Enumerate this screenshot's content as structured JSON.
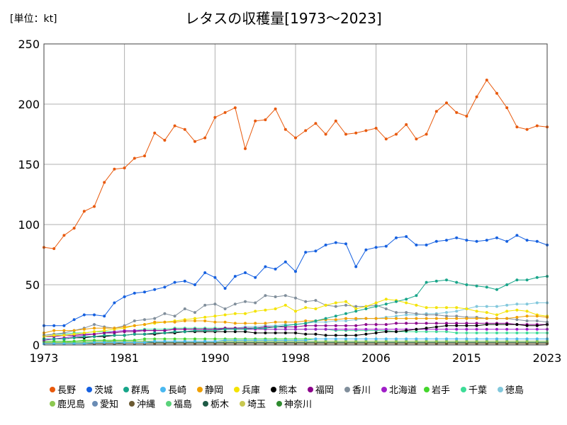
{
  "header": {
    "unit_label": "[単位：kt]"
  },
  "chart_data": {
    "type": "line",
    "title": "レタスの収穫量[1973〜2023]",
    "xlabel": "",
    "ylabel": "",
    "xlim": [
      1973,
      2023
    ],
    "ylim": [
      0,
      250
    ],
    "x_ticks": [
      1973,
      1981,
      1990,
      1998,
      2006,
      2015,
      2023
    ],
    "y_ticks": [
      0,
      50,
      100,
      150,
      200,
      250
    ],
    "grid": true,
    "legend_position": "bottom",
    "x": [
      1973,
      1974,
      1975,
      1976,
      1977,
      1978,
      1979,
      1980,
      1981,
      1982,
      1983,
      1984,
      1985,
      1986,
      1987,
      1988,
      1989,
      1990,
      1991,
      1992,
      1993,
      1994,
      1995,
      1996,
      1997,
      1998,
      1999,
      2000,
      2001,
      2002,
      2003,
      2004,
      2005,
      2006,
      2007,
      2008,
      2009,
      2010,
      2011,
      2012,
      2013,
      2014,
      2015,
      2016,
      2017,
      2018,
      2019,
      2020,
      2021,
      2022,
      2023
    ],
    "series": [
      {
        "name": "長野",
        "color": "#E8590C",
        "values": [
          81,
          80,
          91,
          97,
          111,
          115,
          135,
          146,
          147,
          155,
          157,
          176,
          170,
          182,
          179,
          169,
          172,
          189,
          193,
          197,
          163,
          186,
          187,
          196,
          179,
          172,
          178,
          184,
          175,
          186,
          175,
          176,
          178,
          180,
          171,
          175,
          183,
          171,
          175,
          194,
          201,
          193,
          190,
          206,
          220,
          209,
          197,
          181,
          179,
          182,
          181
        ]
      },
      {
        "name": "茨城",
        "color": "#1560E0",
        "values": [
          16,
          16,
          16,
          21,
          25,
          25,
          24,
          35,
          40,
          43,
          44,
          46,
          48,
          52,
          53,
          50,
          60,
          56,
          47,
          57,
          60,
          56,
          65,
          63,
          69,
          61,
          77,
          78,
          83,
          85,
          84,
          65,
          79,
          81,
          82,
          89,
          90,
          83,
          83,
          86,
          87,
          89,
          87,
          86,
          87,
          89,
          86,
          91,
          87,
          86,
          83
        ]
      },
      {
        "name": "群馬",
        "color": "#17A589",
        "values": [
          5,
          5,
          5,
          6,
          7,
          7,
          8,
          8,
          8,
          9,
          9,
          10,
          10,
          11,
          11,
          12,
          12,
          12,
          13,
          13,
          13,
          14,
          14,
          15,
          16,
          17,
          18,
          20,
          22,
          24,
          26,
          28,
          30,
          32,
          34,
          36,
          38,
          41,
          52,
          53,
          54,
          52,
          50,
          49,
          48,
          46,
          50,
          54,
          54,
          56,
          57
        ]
      },
      {
        "name": "長崎",
        "color": "#4AB8F0",
        "values": [
          1,
          1,
          1,
          1,
          1,
          2,
          2,
          2,
          2,
          2,
          2,
          3,
          3,
          3,
          3,
          3,
          3,
          3,
          4,
          4,
          4,
          4,
          4,
          4,
          4,
          4,
          4,
          5,
          5,
          5,
          5,
          5,
          5,
          5,
          5,
          5,
          5,
          5,
          5,
          5,
          5,
          5,
          5,
          5,
          5,
          5,
          5,
          5,
          5,
          5,
          5
        ]
      },
      {
        "name": "静岡",
        "color": "#F0A000",
        "values": [
          10,
          12,
          12,
          12,
          13,
          14,
          14,
          14,
          15,
          16,
          17,
          19,
          19,
          19,
          20,
          20,
          20,
          19,
          19,
          18,
          18,
          18,
          18,
          19,
          19,
          19,
          20,
          20,
          21,
          21,
          22,
          22,
          22,
          22,
          22,
          22,
          22,
          22,
          22,
          22,
          22,
          22,
          22,
          22,
          22,
          22,
          22,
          23,
          24,
          24,
          23
        ]
      },
      {
        "name": "兵庫",
        "color": "#F4E300",
        "values": [
          7,
          8,
          8,
          9,
          10,
          11,
          12,
          13,
          14,
          16,
          17,
          18,
          19,
          20,
          21,
          22,
          23,
          24,
          25,
          26,
          26,
          28,
          29,
          30,
          33,
          28,
          31,
          30,
          33,
          35,
          36,
          30,
          32,
          35,
          38,
          37,
          35,
          33,
          31,
          31,
          31,
          31,
          30,
          28,
          27,
          25,
          28,
          29,
          28,
          25,
          24
        ]
      },
      {
        "name": "熊本",
        "color": "#000000",
        "values": [
          5,
          5,
          5,
          6,
          6,
          7,
          7,
          8,
          8,
          9,
          9,
          9,
          10,
          10,
          11,
          11,
          11,
          11,
          11,
          11,
          11,
          10,
          10,
          10,
          10,
          10,
          9,
          9,
          8,
          8,
          8,
          8,
          9,
          10,
          11,
          11,
          12,
          13,
          14,
          15,
          16,
          16,
          16,
          16,
          17,
          17,
          17,
          17,
          16,
          16,
          17
        ]
      },
      {
        "name": "福岡",
        "color": "#8B008B",
        "values": [
          7,
          7,
          8,
          8,
          9,
          9,
          10,
          10,
          11,
          11,
          12,
          12,
          12,
          13,
          13,
          13,
          13,
          13,
          14,
          14,
          14,
          14,
          15,
          15,
          15,
          15,
          16,
          16,
          16,
          16,
          16,
          16,
          17,
          17,
          17,
          18,
          18,
          18,
          18,
          18,
          18,
          18,
          18,
          18,
          18,
          18,
          18,
          17,
          17,
          17,
          17
        ]
      },
      {
        "name": "香川",
        "color": "#808E9B",
        "values": [
          8,
          9,
          10,
          12,
          14,
          17,
          15,
          14,
          16,
          20,
          21,
          22,
          26,
          24,
          30,
          27,
          33,
          34,
          30,
          34,
          36,
          35,
          41,
          40,
          41,
          39,
          36,
          37,
          33,
          32,
          33,
          32,
          32,
          33,
          30,
          27,
          27,
          26,
          25,
          25,
          24,
          24,
          23,
          23,
          22,
          22,
          22,
          21,
          20,
          20,
          19
        ]
      },
      {
        "name": "北海道",
        "color": "#A01EC8",
        "values": [
          4,
          5,
          6,
          7,
          8,
          9,
          10,
          11,
          12,
          12,
          12,
          12,
          12,
          13,
          13,
          13,
          13,
          13,
          13,
          13,
          13,
          13,
          13,
          13,
          13,
          13,
          13,
          13,
          13,
          13,
          13,
          13,
          13,
          13,
          13,
          13,
          13,
          13,
          13,
          13,
          13,
          13,
          13,
          13,
          13,
          13,
          13,
          13,
          13,
          13,
          13
        ]
      },
      {
        "name": "岩手",
        "color": "#44D62C",
        "values": [
          3,
          3,
          3,
          3,
          4,
          4,
          4,
          4,
          4,
          4,
          5,
          5,
          5,
          5,
          5,
          5,
          5,
          5,
          5,
          5,
          5,
          5,
          5,
          5,
          5,
          5,
          5,
          5,
          5,
          5,
          5,
          5,
          5,
          5,
          5,
          5,
          5,
          5,
          5,
          5,
          5,
          5,
          5,
          5,
          5,
          5,
          5,
          5,
          5,
          5,
          5
        ]
      },
      {
        "name": "千葉",
        "color": "#3DDC97",
        "values": [
          8,
          9,
          9,
          10,
          10,
          11,
          11,
          11,
          12,
          12,
          13,
          13,
          13,
          14,
          14,
          14,
          14,
          14,
          14,
          14,
          14,
          14,
          13,
          13,
          13,
          13,
          13,
          13,
          13,
          12,
          12,
          12,
          12,
          12,
          12,
          11,
          11,
          11,
          11,
          11,
          11,
          10,
          10,
          10,
          10,
          10,
          10,
          10,
          10,
          10,
          10
        ]
      },
      {
        "name": "徳島",
        "color": "#82C8DC",
        "values": [
          5,
          5,
          5,
          6,
          6,
          7,
          7,
          8,
          8,
          9,
          9,
          10,
          10,
          11,
          11,
          12,
          12,
          13,
          13,
          14,
          15,
          15,
          16,
          16,
          17,
          17,
          18,
          19,
          19,
          20,
          20,
          21,
          22,
          22,
          23,
          24,
          25,
          25,
          26,
          26,
          27,
          28,
          30,
          32,
          32,
          32,
          33,
          34,
          34,
          35,
          35
        ]
      },
      {
        "name": "鹿児島",
        "color": "#8CC850",
        "values": [
          2,
          2,
          2,
          3,
          3,
          3,
          3,
          3,
          3,
          3,
          3,
          3,
          3,
          3,
          3,
          3,
          3,
          3,
          3,
          3,
          3,
          3,
          3,
          3,
          3,
          3,
          3,
          3,
          3,
          3,
          3,
          3,
          3,
          3,
          3,
          3,
          3,
          3,
          3,
          3,
          3,
          3,
          3,
          3,
          3,
          3,
          3,
          3,
          3,
          3,
          3
        ]
      },
      {
        "name": "愛知",
        "color": "#6A8CB4",
        "values": [
          3,
          3,
          3,
          3,
          3,
          3,
          3,
          3,
          3,
          3,
          3,
          3,
          3,
          3,
          3,
          3,
          3,
          3,
          3,
          3,
          3,
          3,
          3,
          3,
          3,
          3,
          3,
          3,
          3,
          3,
          3,
          3,
          3,
          3,
          3,
          3,
          3,
          3,
          3,
          3,
          3,
          3,
          3,
          3,
          3,
          3,
          3,
          3,
          3,
          3,
          3
        ]
      },
      {
        "name": "沖縄",
        "color": "#6B5A32",
        "values": [
          1,
          1,
          1,
          1,
          1,
          1,
          1,
          1,
          1,
          1,
          1,
          1,
          1,
          1,
          1,
          1,
          1,
          1,
          1,
          1,
          1,
          1,
          1,
          1,
          1,
          1,
          1,
          1,
          1,
          1,
          1,
          1,
          1,
          1,
          1,
          1,
          1,
          1,
          1,
          1,
          1,
          1,
          1,
          1,
          1,
          1,
          1,
          1,
          1,
          1,
          1
        ]
      },
      {
        "name": "福島",
        "color": "#5AD27A",
        "values": [
          2,
          2,
          2,
          2,
          2,
          2,
          2,
          3,
          3,
          3,
          3,
          3,
          3,
          3,
          3,
          3,
          3,
          3,
          3,
          3,
          3,
          3,
          3,
          3,
          3,
          3,
          3,
          3,
          3,
          3,
          3,
          3,
          3,
          3,
          3,
          3,
          3,
          3,
          3,
          3,
          3,
          3,
          3,
          3,
          3,
          3,
          3,
          3,
          3,
          3,
          3
        ]
      },
      {
        "name": "栃木",
        "color": "#1E5A46",
        "values": [
          1,
          1,
          1,
          1,
          1,
          1,
          1,
          1,
          2,
          2,
          2,
          2,
          2,
          2,
          2,
          2,
          2,
          2,
          2,
          2,
          2,
          2,
          2,
          2,
          2,
          2,
          2,
          2,
          2,
          2,
          2,
          2,
          2,
          2,
          2,
          2,
          2,
          2,
          2,
          2,
          2,
          2,
          2,
          2,
          2,
          2,
          2,
          2,
          2,
          2,
          2
        ]
      },
      {
        "name": "埼玉",
        "color": "#C8C850",
        "values": [
          2,
          2,
          2,
          2,
          2,
          2,
          2,
          2,
          2,
          2,
          2,
          2,
          2,
          2,
          2,
          2,
          2,
          2,
          2,
          2,
          2,
          2,
          2,
          2,
          2,
          2,
          2,
          2,
          2,
          2,
          2,
          2,
          2,
          2,
          2,
          2,
          2,
          2,
          2,
          2,
          2,
          2,
          2,
          2,
          2,
          2,
          2,
          2,
          2,
          2,
          2
        ]
      },
      {
        "name": "神奈川",
        "color": "#2E8B2E",
        "values": [
          3,
          3,
          3,
          3,
          3,
          3,
          3,
          3,
          3,
          3,
          3,
          3,
          3,
          3,
          3,
          3,
          3,
          3,
          3,
          3,
          3,
          3,
          3,
          3,
          3,
          3,
          3,
          3,
          3,
          3,
          3,
          3,
          3,
          3,
          3,
          3,
          3,
          3,
          3,
          3,
          3,
          3,
          3,
          3,
          3,
          3,
          3,
          3,
          3,
          3,
          3
        ]
      }
    ]
  }
}
